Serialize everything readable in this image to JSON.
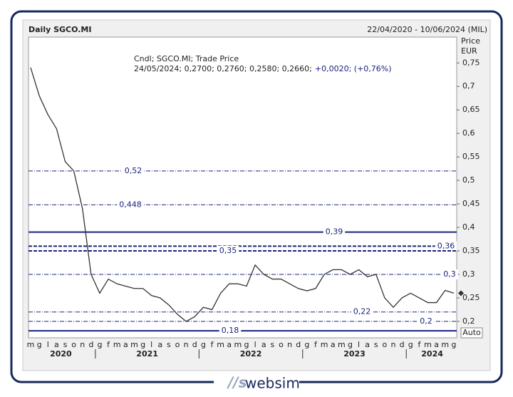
{
  "chart_data": {
    "type": "line",
    "title": "Daily SGCO.MI",
    "date_range": "22/04/2020 - 10/06/2024 (MIL)",
    "y_axis_label": "Price",
    "y_axis_unit": "EUR",
    "info_line1": "Cndl; SGCO.MI; Trade Price",
    "info_line2": "24/05/2024; 0,2700; 0,2760; 0,2580; 0,2660;",
    "info_change": "+0,0020; (+0,76%)",
    "scale_button": "Auto",
    "categories": [
      "m",
      "g",
      "l",
      "a",
      "s",
      "o",
      "n",
      "d",
      "g",
      "f",
      "m",
      "a",
      "m",
      "g",
      "l",
      "a",
      "s",
      "o",
      "n",
      "d",
      "g",
      "f",
      "m",
      "a",
      "m",
      "g",
      "l",
      "a",
      "s",
      "o",
      "n",
      "d",
      "g",
      "f",
      "m",
      "a",
      "m",
      "g",
      "l",
      "a",
      "s",
      "o",
      "n",
      "d",
      "g",
      "f",
      "m",
      "a",
      "m",
      "g"
    ],
    "year_labels": [
      "2020",
      "2021",
      "2022",
      "2023",
      "2024"
    ],
    "series": [
      {
        "name": "SGCO.MI",
        "color": "#333333",
        "values": [
          0.74,
          0.68,
          0.64,
          0.61,
          0.54,
          0.52,
          0.44,
          0.3,
          0.26,
          0.29,
          0.28,
          0.275,
          0.27,
          0.27,
          0.255,
          0.25,
          0.235,
          0.215,
          0.2,
          0.21,
          0.23,
          0.225,
          0.26,
          0.28,
          0.28,
          0.275,
          0.32,
          0.3,
          0.29,
          0.29,
          0.28,
          0.27,
          0.265,
          0.27,
          0.3,
          0.31,
          0.31,
          0.3,
          0.31,
          0.295,
          0.3,
          0.25,
          0.23,
          0.25,
          0.26,
          0.25,
          0.24,
          0.24,
          0.266,
          0.26
        ]
      }
    ],
    "ylim": [
      0.165,
      0.805
    ],
    "yticks": [
      {
        "value": 0.2,
        "label": "0,2"
      },
      {
        "value": 0.25,
        "label": "0,25"
      },
      {
        "value": 0.3,
        "label": "0,3"
      },
      {
        "value": 0.35,
        "label": "0,35"
      },
      {
        "value": 0.4,
        "label": "0,4"
      },
      {
        "value": 0.45,
        "label": "0,45"
      },
      {
        "value": 0.5,
        "label": "0,5"
      },
      {
        "value": 0.55,
        "label": "0,55"
      },
      {
        "value": 0.6,
        "label": "0,6"
      },
      {
        "value": 0.65,
        "label": "0,65"
      },
      {
        "value": 0.7,
        "label": "0,7"
      },
      {
        "value": 0.75,
        "label": "0,75"
      }
    ],
    "levels": [
      {
        "value": 0.52,
        "label": "0,52",
        "style": "dashdot"
      },
      {
        "value": 0.448,
        "label": "0,448",
        "style": "dashdot"
      },
      {
        "value": 0.39,
        "label": "0,39",
        "style": "solid"
      },
      {
        "value": 0.36,
        "label": "0,36",
        "style": "dashed"
      },
      {
        "value": 0.35,
        "label": "0,35",
        "style": "dashed"
      },
      {
        "value": 0.3,
        "label": "0,3",
        "style": "dashdot"
      },
      {
        "value": 0.22,
        "label": "0,22",
        "style": "dashdot"
      },
      {
        "value": 0.2,
        "label": "0,2",
        "style": "dashdot"
      },
      {
        "value": 0.18,
        "label": "0,18",
        "style": "solid"
      }
    ],
    "level_color": "#1a237e",
    "grid": true
  },
  "footer": {
    "logo": "websim"
  }
}
